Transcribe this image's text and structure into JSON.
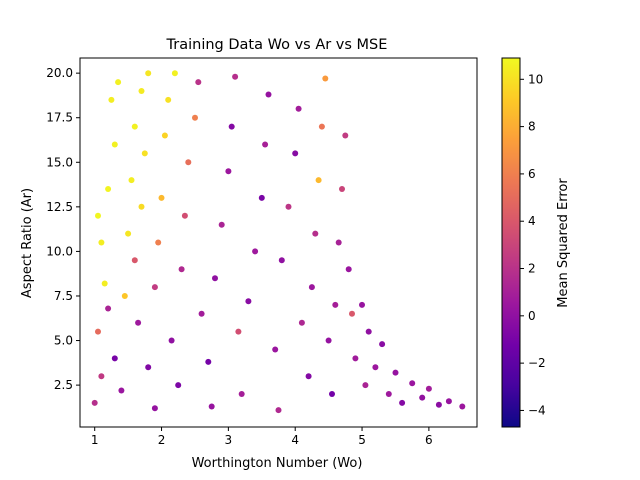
{
  "chart_data": {
    "type": "scatter",
    "title": "Training Data Wo vs Ar vs MSE",
    "xlabel": "Worthington Number (Wo)",
    "ylabel": "Aspect Ratio (Ar)",
    "xlim": [
      0.78,
      6.72
    ],
    "ylim": [
      0.15,
      20.85
    ],
    "x_ticks": [
      1,
      2,
      3,
      4,
      5,
      6
    ],
    "x_tick_labels": [
      "1",
      "2",
      "3",
      "4",
      "5",
      "6"
    ],
    "y_ticks": [
      2.5,
      5.0,
      7.5,
      10.0,
      12.5,
      15.0,
      17.5,
      20.0
    ],
    "y_tick_labels": [
      "2.5",
      "5.0",
      "7.5",
      "10.0",
      "12.5",
      "15.0",
      "17.5",
      "20.0"
    ],
    "grid": false,
    "colorbar": {
      "label": "Mean Squared Error",
      "colormap": "plasma",
      "range": [
        -4.7,
        10.9
      ],
      "ticks": [
        -4,
        -2,
        0,
        2,
        4,
        6,
        8,
        10
      ],
      "tick_labels": [
        "−4",
        "−2",
        "0",
        "2",
        "4",
        "6",
        "8",
        "10"
      ],
      "stops": [
        "#0d0887",
        "#46039f",
        "#7201a8",
        "#9c179e",
        "#bd3786",
        "#d8576b",
        "#ed7953",
        "#fb9f3a",
        "#fdca26",
        "#f0f921"
      ]
    },
    "series": [
      {
        "points": [
          [
            1.0,
            1.5,
            1.8
          ],
          [
            1.1,
            3.0,
            2.4
          ],
          [
            1.05,
            5.5,
            5.0
          ],
          [
            1.15,
            8.2,
            10.5
          ],
          [
            1.1,
            10.5,
            10.5
          ],
          [
            1.05,
            12.0,
            10.8
          ],
          [
            1.2,
            13.5,
            10.7
          ],
          [
            1.3,
            16.0,
            10.6
          ],
          [
            1.25,
            18.5,
            10.5
          ],
          [
            1.35,
            19.5,
            10.6
          ],
          [
            1.2,
            6.8,
            1.2
          ],
          [
            1.3,
            4.0,
            -1.0
          ],
          [
            1.4,
            2.2,
            0.4
          ],
          [
            1.45,
            7.5,
            9.0
          ],
          [
            1.5,
            11.0,
            10.2
          ],
          [
            1.55,
            14.0,
            10.5
          ],
          [
            1.6,
            17.0,
            10.6
          ],
          [
            1.7,
            19.0,
            10.4
          ],
          [
            1.8,
            20.0,
            10.2
          ],
          [
            1.6,
            9.5,
            4.0
          ],
          [
            1.7,
            12.5,
            9.8
          ],
          [
            1.75,
            15.5,
            10.0
          ],
          [
            1.65,
            6.0,
            0.6
          ],
          [
            1.8,
            3.5,
            -0.6
          ],
          [
            1.9,
            1.2,
            0.2
          ],
          [
            1.9,
            8.0,
            2.5
          ],
          [
            1.95,
            10.5,
            6.0
          ],
          [
            2.0,
            13.0,
            8.5
          ],
          [
            2.05,
            16.5,
            9.5
          ],
          [
            2.1,
            18.5,
            10.0
          ],
          [
            2.2,
            20.0,
            10.6
          ],
          [
            2.15,
            5.0,
            0.0
          ],
          [
            2.25,
            2.5,
            -0.8
          ],
          [
            2.3,
            9.0,
            1.5
          ],
          [
            2.35,
            12.0,
            3.5
          ],
          [
            2.4,
            15.0,
            5.2
          ],
          [
            2.5,
            17.5,
            6.0
          ],
          [
            2.55,
            19.5,
            2.0
          ],
          [
            2.6,
            6.5,
            0.8
          ],
          [
            2.7,
            3.8,
            -1.1
          ],
          [
            2.75,
            1.3,
            0.3
          ],
          [
            2.8,
            8.5,
            0.0
          ],
          [
            2.9,
            11.5,
            1.2
          ],
          [
            3.0,
            14.5,
            0.5
          ],
          [
            3.05,
            17.0,
            -0.5
          ],
          [
            3.1,
            19.8,
            1.8
          ],
          [
            3.15,
            5.5,
            3.5
          ],
          [
            3.2,
            2.0,
            0.9
          ],
          [
            3.3,
            7.2,
            -0.3
          ],
          [
            3.4,
            10.0,
            0.6
          ],
          [
            3.5,
            13.0,
            -0.9
          ],
          [
            3.55,
            16.0,
            1.0
          ],
          [
            3.6,
            18.8,
            0.2
          ],
          [
            3.7,
            4.5,
            0.4
          ],
          [
            3.75,
            1.1,
            1.5
          ],
          [
            3.8,
            9.5,
            0.0
          ],
          [
            3.9,
            12.5,
            2.2
          ],
          [
            4.0,
            15.5,
            -0.4
          ],
          [
            4.05,
            18.0,
            0.8
          ],
          [
            4.1,
            6.0,
            1.4
          ],
          [
            4.2,
            3.0,
            -0.5
          ],
          [
            4.25,
            8.0,
            0.5
          ],
          [
            4.3,
            11.0,
            1.8
          ],
          [
            4.35,
            14.0,
            8.5
          ],
          [
            4.4,
            17.0,
            5.5
          ],
          [
            4.45,
            19.7,
            7.2
          ],
          [
            4.5,
            5.0,
            0.2
          ],
          [
            4.55,
            2.0,
            -1.2
          ],
          [
            4.6,
            7.0,
            0.9
          ],
          [
            4.65,
            10.5,
            1.1
          ],
          [
            4.7,
            13.5,
            3.0
          ],
          [
            4.75,
            16.5,
            2.5
          ],
          [
            4.8,
            9.0,
            0.4
          ],
          [
            4.85,
            6.5,
            4.0
          ],
          [
            4.9,
            4.0,
            0.7
          ],
          [
            5.0,
            7.0,
            0.3
          ],
          [
            5.05,
            2.5,
            1.2
          ],
          [
            5.1,
            5.5,
            0.0
          ],
          [
            5.2,
            3.5,
            0.5
          ],
          [
            5.3,
            4.8,
            -0.3
          ],
          [
            5.4,
            2.0,
            0.6
          ],
          [
            5.5,
            3.2,
            0.2
          ],
          [
            5.6,
            1.5,
            -0.5
          ],
          [
            5.75,
            2.6,
            0.4
          ],
          [
            5.9,
            1.8,
            0.1
          ],
          [
            6.0,
            2.3,
            0.8
          ],
          [
            6.15,
            1.4,
            -0.2
          ],
          [
            6.3,
            1.6,
            0.3
          ],
          [
            6.5,
            1.3,
            0.5
          ]
        ]
      }
    ]
  }
}
